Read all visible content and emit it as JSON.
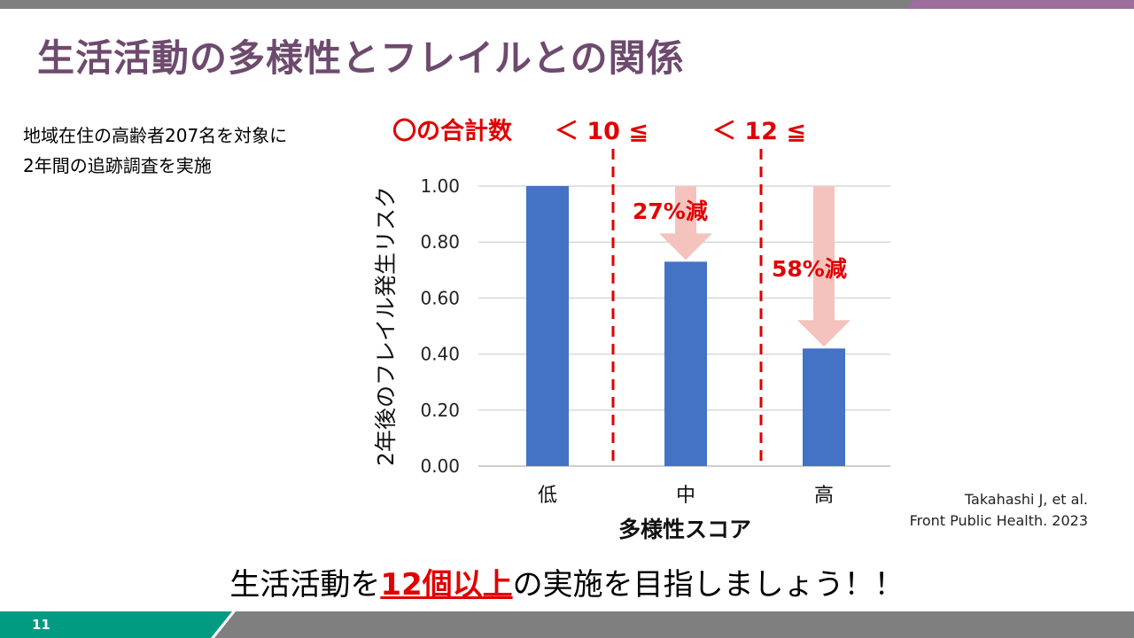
{
  "title": "生活活動の多様性とフレイルとの関係",
  "intro": [
    "地域在住の高齢者207名を対象に",
    "2年間の追跡調査を実施"
  ],
  "threshold_header": {
    "label": "〇の合計数",
    "t1": "＜ 10 ≦",
    "t2": "＜ 12 ≦"
  },
  "annotations": [
    {
      "text": "27%減"
    },
    {
      "text": "58%減"
    }
  ],
  "citation": [
    "Takahashi J, et al.",
    "Front Public Health. 2023"
  ],
  "bottom_message": {
    "before": "生活活動を",
    "highlight": "12個以上",
    "after": "の実施を目指しましょう！！"
  },
  "page_number": "11",
  "colors": {
    "bar": "#4472c4",
    "accent": "#e00000",
    "arrow": "#f4c3bd",
    "title": "#6e4a6e"
  },
  "chart_data": {
    "type": "bar",
    "categories": [
      "低",
      "中",
      "高"
    ],
    "values": [
      1.0,
      0.73,
      0.42
    ],
    "xlabel": "多様性スコア",
    "ylabel": "2年後のフレイル発生リスク",
    "ylim": [
      0,
      1.0
    ],
    "yticks": [
      "0.00",
      "0.20",
      "0.40",
      "0.60",
      "0.80",
      "1.00"
    ],
    "grid": true
  }
}
